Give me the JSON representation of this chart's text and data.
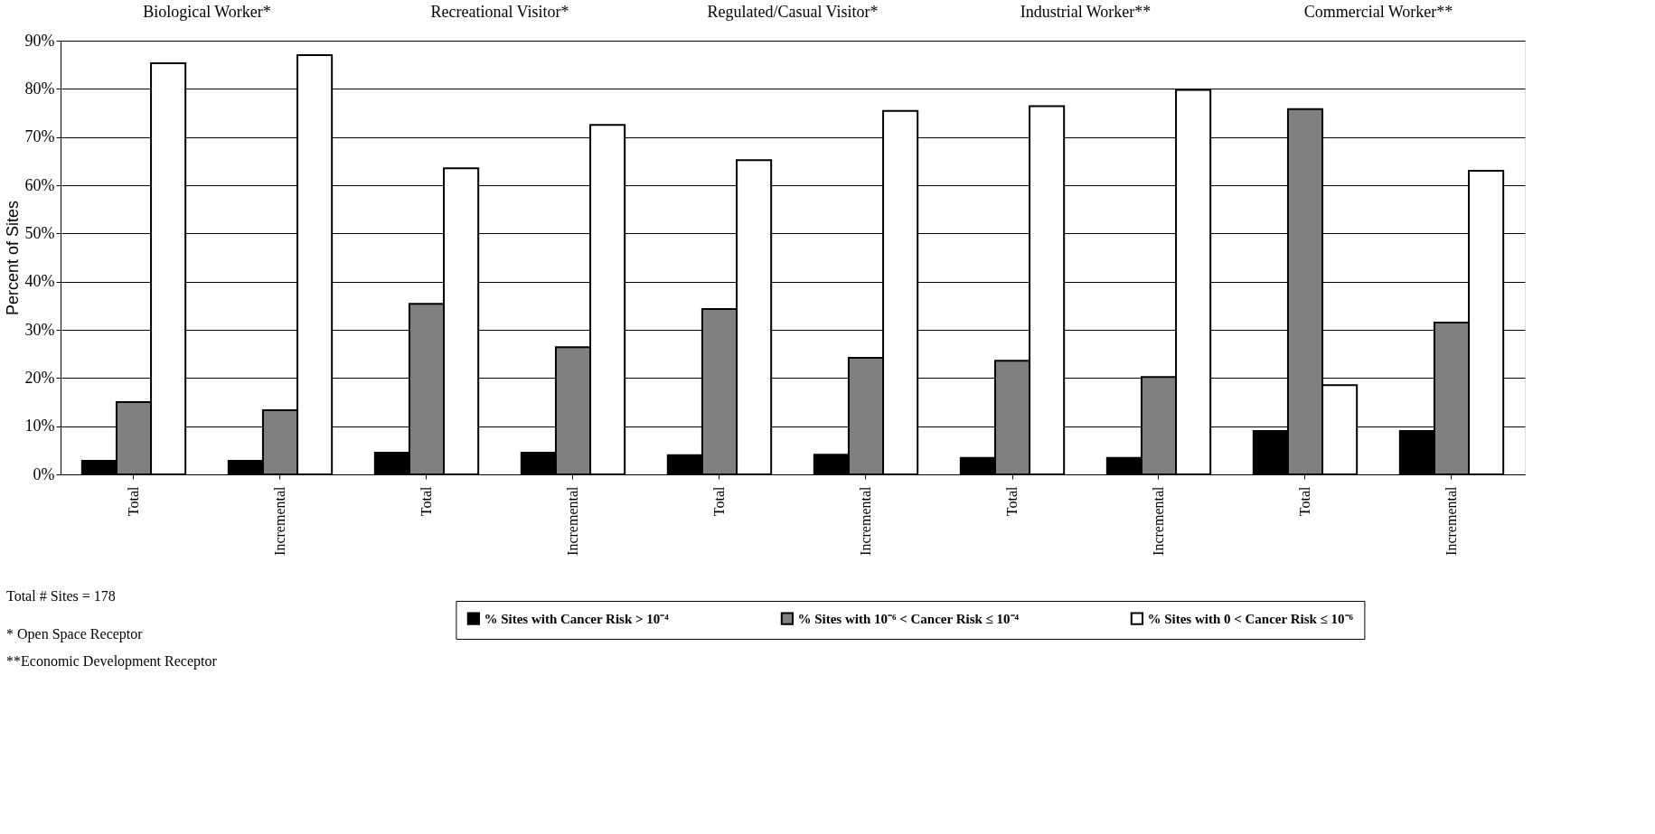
{
  "chart_data": {
    "type": "bar",
    "categories": [
      "Total",
      "Incremental",
      "Total",
      "Incremental",
      "Total",
      "Incremental",
      "Total",
      "Incremental",
      "Total",
      "Incremental"
    ],
    "series": [
      {
        "name": "% Sites with Cancer Risk > 10⁻⁴",
        "color": "#000000",
        "values": [
          2.8,
          2.8,
          4.5,
          4.5,
          4.0,
          4.1,
          3.4,
          3.4,
          9.0,
          9.0
        ]
      },
      {
        "name": "% Sites with 10⁻⁶ < Cancer Risk ≤ 10⁻⁴",
        "color": "#808080",
        "values": [
          15.0,
          13.3,
          35.4,
          26.4,
          34.3,
          24.2,
          23.6,
          20.2,
          75.8,
          31.5
        ]
      },
      {
        "name": "% Sites with 0 < Cancer Risk ≤ 10⁻⁶",
        "color": "#ffffff",
        "values": [
          85.3,
          87.0,
          63.5,
          72.5,
          65.2,
          75.4,
          76.4,
          79.8,
          18.5,
          63.0
        ]
      }
    ],
    "ylabel": "Percent of Sites",
    "ylim": [
      0,
      90
    ],
    "yticks": [
      {
        "value": 0,
        "label": "0%"
      },
      {
        "value": 10,
        "label": "10%"
      },
      {
        "value": 20,
        "label": "20%"
      },
      {
        "value": 30,
        "label": "30%"
      },
      {
        "value": 40,
        "label": "40%"
      },
      {
        "value": 50,
        "label": "50%"
      },
      {
        "value": 60,
        "label": "60%"
      },
      {
        "value": 70,
        "label": "70%"
      },
      {
        "value": 80,
        "label": "80%"
      },
      {
        "value": 90,
        "label": "90%"
      }
    ],
    "grid": "y",
    "legend": "bottom",
    "annotations": [
      "Biological Worker*",
      "Recreational Visitor*",
      "Regulated/Casual Visitor*",
      "Industrial Worker**",
      "Commercial Worker**",
      "Total # Sites = 178",
      "* Open Space Receptor",
      "**Economic Development Receptor"
    ]
  }
}
